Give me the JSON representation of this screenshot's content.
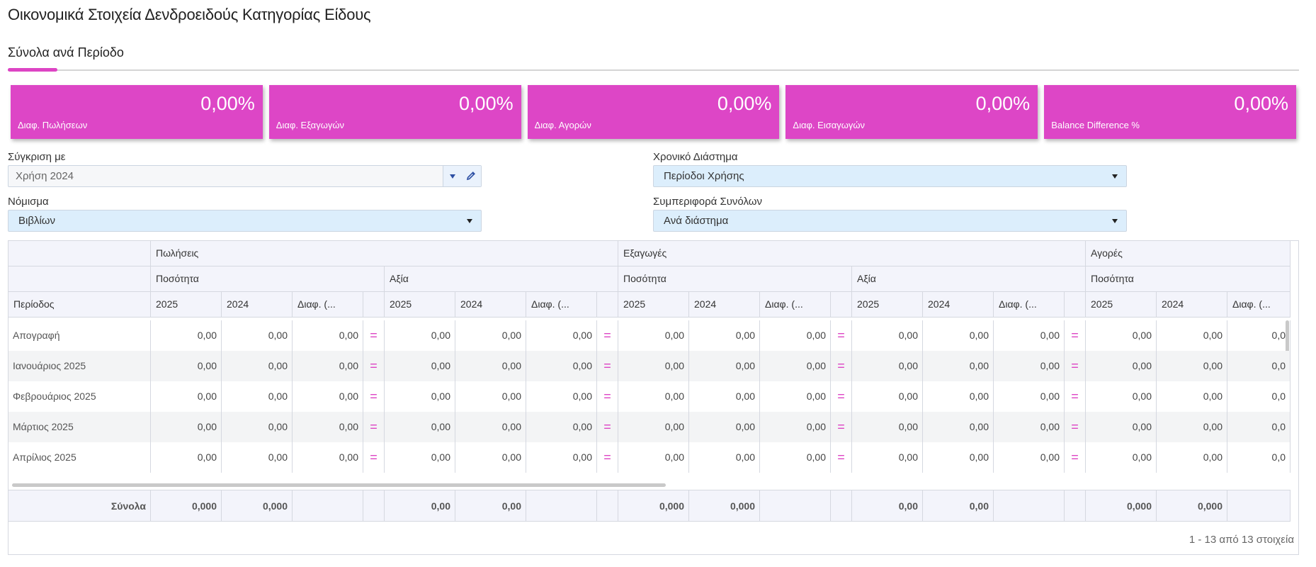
{
  "page": {
    "title": "Οικονομικά Στοιχεία Δενδροειδούς Κατηγορίας Είδους",
    "tab": "Σύνολα ανά Περίοδο"
  },
  "colors": {
    "accent": "#dd46c6",
    "select_bg": "#dceefc",
    "header_bg": "#f3f4fb"
  },
  "kpis": [
    {
      "value": "0,00%",
      "label": "Διαφ. Πωλήσεων"
    },
    {
      "value": "0,00%",
      "label": "Διαφ. Εξαγωγών"
    },
    {
      "value": "0,00%",
      "label": "Διαφ. Αγορών"
    },
    {
      "value": "0,00%",
      "label": "Διαφ. Εισαγωγών"
    },
    {
      "value": "0,00%",
      "label": "Balance Difference %"
    }
  ],
  "filters": {
    "compare": {
      "label": "Σύγκριση με",
      "value": "Χρήση 2024"
    },
    "period_range": {
      "label": "Χρονικό Διάστημα",
      "value": "Περίοδοι Χρήσης"
    },
    "currency": {
      "label": "Νόμισμα",
      "value": "Βιβλίων"
    },
    "totals_behavior": {
      "label": "Συμπεριφορά Συνόλων",
      "value": "Ανά διάστημα"
    }
  },
  "grid": {
    "groups": [
      "Πωλήσεις",
      "Εξαγωγές",
      "Αγορές"
    ],
    "subgroups": [
      "Ποσότητα",
      "Αξία",
      "Ποσότητα",
      "Αξία",
      "Ποσότητα"
    ],
    "period_header": "Περίοδος",
    "col_headers": [
      "2025",
      "2024",
      "Διαφ. (..."
    ],
    "eq_symbol": "=",
    "rows": [
      {
        "period": "Απογραφή",
        "value": "0,00"
      },
      {
        "period": "Ιανουάριος 2025",
        "value": "0,00"
      },
      {
        "period": "Φεβρουάριος 2025",
        "value": "0,00"
      },
      {
        "period": "Μάρτιος 2025",
        "value": "0,00"
      },
      {
        "period": "Απρίλιος 2025",
        "value": "0,00"
      }
    ],
    "last_visible_value": "0,0",
    "footer": {
      "label": "Σύνολα",
      "qty_values": [
        "0,000",
        "0,000"
      ],
      "val_values": [
        "0,00",
        "0,00"
      ]
    },
    "pager": "1 - 13 από 13 στοιχεία"
  }
}
